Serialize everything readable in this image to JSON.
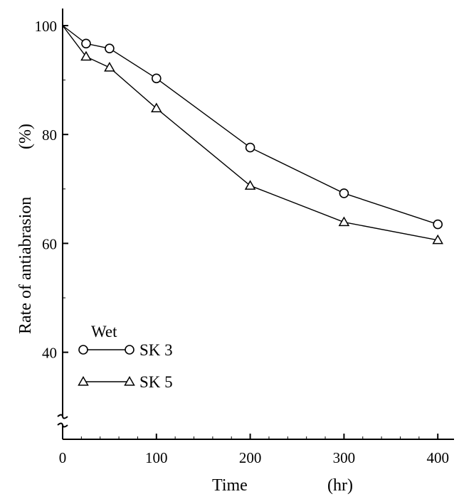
{
  "chart_data": {
    "type": "line",
    "xlabel": "Time",
    "xunit": "(hr)",
    "ylabel": "Rate of antiabrasion",
    "yunit": "(%)",
    "xlim": [
      0,
      420
    ],
    "ylim": [
      36,
      102
    ],
    "x_ticks": [
      0,
      100,
      200,
      300,
      400
    ],
    "y_ticks": [
      40,
      60,
      80,
      100
    ],
    "y_axis_break": true,
    "grid": false,
    "legend_title": "Wet",
    "legend_position": "lower-left",
    "series": [
      {
        "name": "SK 3",
        "marker": "circle",
        "x": [
          0,
          25,
          50,
          100,
          200,
          300,
          400
        ],
        "y": [
          100,
          96.7,
          95.8,
          90.3,
          77.6,
          69.2,
          63.5
        ]
      },
      {
        "name": "SK 5",
        "marker": "triangle",
        "x": [
          0,
          25,
          50,
          100,
          200,
          300,
          400
        ],
        "y": [
          100,
          94.3,
          92.3,
          84.8,
          70.6,
          63.9,
          60.6
        ]
      }
    ]
  }
}
